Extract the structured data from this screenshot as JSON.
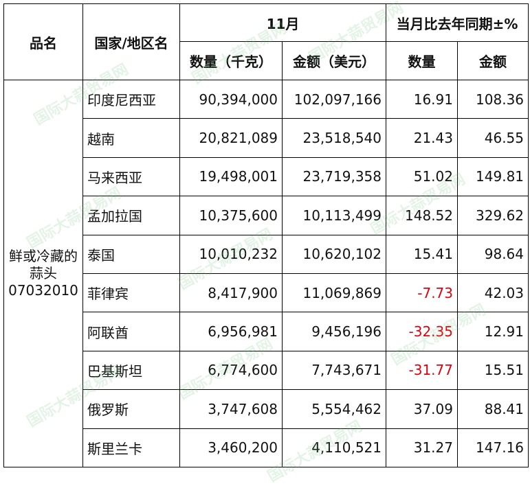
{
  "header": {
    "product_label": "品名",
    "region_label": "国家/地区名",
    "month_label": "11月",
    "yoy_label": "当月比去年同期±%",
    "qty_kg_label": "数量（千克）",
    "amount_usd_label": "金额（美元）",
    "qty_label": "数量",
    "amount_label": "金额"
  },
  "product": {
    "line1": "鲜或冷藏的",
    "line2": "蒜头",
    "code": "07032010"
  },
  "rows": [
    {
      "country": "印度尼西亚",
      "qty": "90,394,000",
      "amount": "102,097,166",
      "qty_yoy": "16.91",
      "amount_yoy": "108.36"
    },
    {
      "country": "越南",
      "qty": "20,821,089",
      "amount": "23,518,540",
      "qty_yoy": "21.43",
      "amount_yoy": "46.55"
    },
    {
      "country": "马来西亚",
      "qty": "19,498,001",
      "amount": "23,719,358",
      "qty_yoy": "51.02",
      "amount_yoy": "149.81"
    },
    {
      "country": "孟加拉国",
      "qty": "10,375,600",
      "amount": "10,113,499",
      "qty_yoy": "148.52",
      "amount_yoy": "329.62"
    },
    {
      "country": "泰国",
      "qty": "10,010,232",
      "amount": "10,620,102",
      "qty_yoy": "15.41",
      "amount_yoy": "98.64"
    },
    {
      "country": "菲律宾",
      "qty": "8,417,900",
      "amount": "11,069,869",
      "qty_yoy": "-7.73",
      "amount_yoy": "42.03"
    },
    {
      "country": "阿联酋",
      "qty": "6,956,981",
      "amount": "9,456,196",
      "qty_yoy": "-32.35",
      "amount_yoy": "12.91"
    },
    {
      "country": "巴基斯坦",
      "qty": "6,774,600",
      "amount": "7,743,671",
      "qty_yoy": "-31.77",
      "amount_yoy": "15.51"
    },
    {
      "country": "俄罗斯",
      "qty": "3,747,608",
      "amount": "5,554,462",
      "qty_yoy": "37.09",
      "amount_yoy": "88.41"
    },
    {
      "country": "斯里兰卡",
      "qty": "3,460,200",
      "amount": "4,110,521",
      "qty_yoy": "31.27",
      "amount_yoy": "147.16"
    }
  ],
  "watermark": {
    "text": "国际大蒜贸易网",
    "color": "#6fbf7a"
  },
  "colors": {
    "negative": "#e0000f",
    "text": "#111111",
    "border": "#000000"
  }
}
